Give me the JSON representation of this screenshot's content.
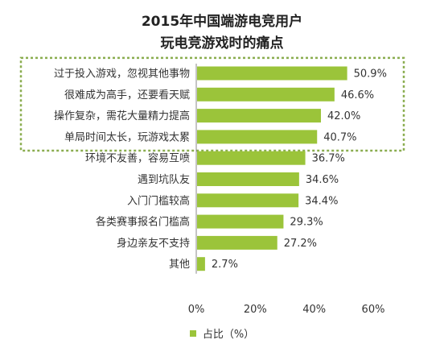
{
  "title_line1": "2015年中国端游电竞用户",
  "title_line2": "玩电竞游戏时的痛点",
  "colors": {
    "bar": "#9bc43a",
    "highlight_border": "#8aad4f",
    "axis": "#888888"
  },
  "chart_data": {
    "type": "bar",
    "orientation": "horizontal",
    "categories": [
      "过于投入游戏，忽视其他事物",
      "很难成为高手，还要看天赋",
      "操作复杂，需花大量精力提高",
      "单局时间太长，玩游戏太累",
      "环境不友善，容易互喷",
      "遇到坑队友",
      "入门门槛较高",
      "各类赛事报名门槛高",
      "身边亲友不支持",
      "其他"
    ],
    "values": [
      50.9,
      46.6,
      42.0,
      40.7,
      36.7,
      34.6,
      34.4,
      29.3,
      27.2,
      2.7
    ],
    "value_labels": [
      "50.9%",
      "46.6%",
      "42.0%",
      "40.7%",
      "36.7%",
      "34.6%",
      "34.4%",
      "29.3%",
      "27.2%",
      "2.7%"
    ],
    "series": [
      {
        "name": "占比（%）",
        "values": [
          50.9,
          46.6,
          42.0,
          40.7,
          36.7,
          34.6,
          34.4,
          29.3,
          27.2,
          2.7
        ]
      }
    ],
    "xlim": [
      0,
      60
    ],
    "x_ticks": [
      0,
      20,
      40,
      60
    ],
    "x_tick_labels": [
      "0%",
      "20%",
      "40%",
      "60%"
    ],
    "highlighted_categories": 4,
    "grid": false,
    "legend_position": "bottom"
  }
}
